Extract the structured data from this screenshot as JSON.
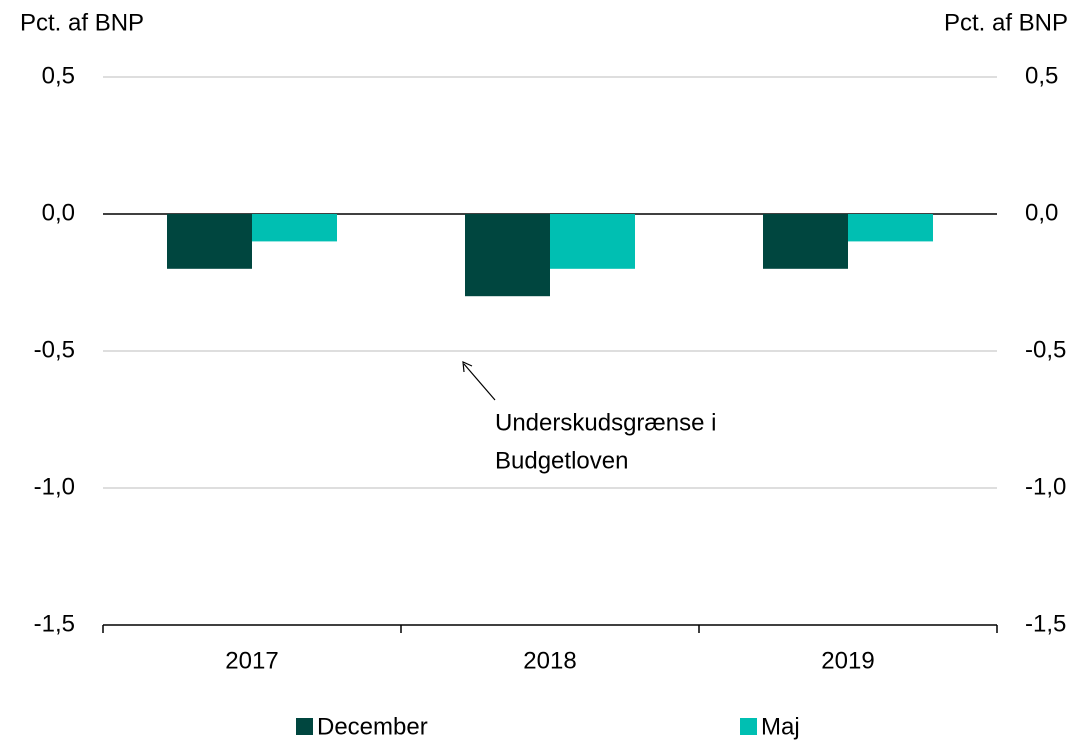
{
  "chart_data": {
    "type": "bar",
    "y_label": "Pct. af BNP",
    "y2_label": "Pct. af BNP",
    "categories": [
      "2017",
      "2018",
      "2019"
    ],
    "series": [
      {
        "name": "December",
        "color": "#00463f",
        "values": [
          -0.2,
          -0.3,
          -0.2
        ]
      },
      {
        "name": "Maj",
        "color": "#00bfb2",
        "values": [
          -0.1,
          -0.2,
          -0.1
        ]
      }
    ],
    "ylim": [
      -1.5,
      0.5
    ],
    "yticks": [
      {
        "value": 0.5,
        "label": "0,5"
      },
      {
        "value": 0,
        "label": "0,0"
      },
      {
        "value": -0.5,
        "label": "-0,5"
      },
      {
        "value": -1,
        "label": "-1,0"
      },
      {
        "value": -1.5,
        "label": "-1,5"
      }
    ],
    "y2lim": [
      -1.5,
      0.5
    ],
    "y2ticks": [
      {
        "value": 0.5,
        "label": "0,5"
      },
      {
        "value": 0,
        "label": "0,0"
      },
      {
        "value": -0.5,
        "label": "-0,5"
      },
      {
        "value": -1,
        "label": "-1,0"
      },
      {
        "value": -1.5,
        "label": "-1,5"
      }
    ],
    "annotation": [
      "Underskudsgrænse i",
      "Budgetloven"
    ],
    "grid": true,
    "legend": "bottom"
  }
}
